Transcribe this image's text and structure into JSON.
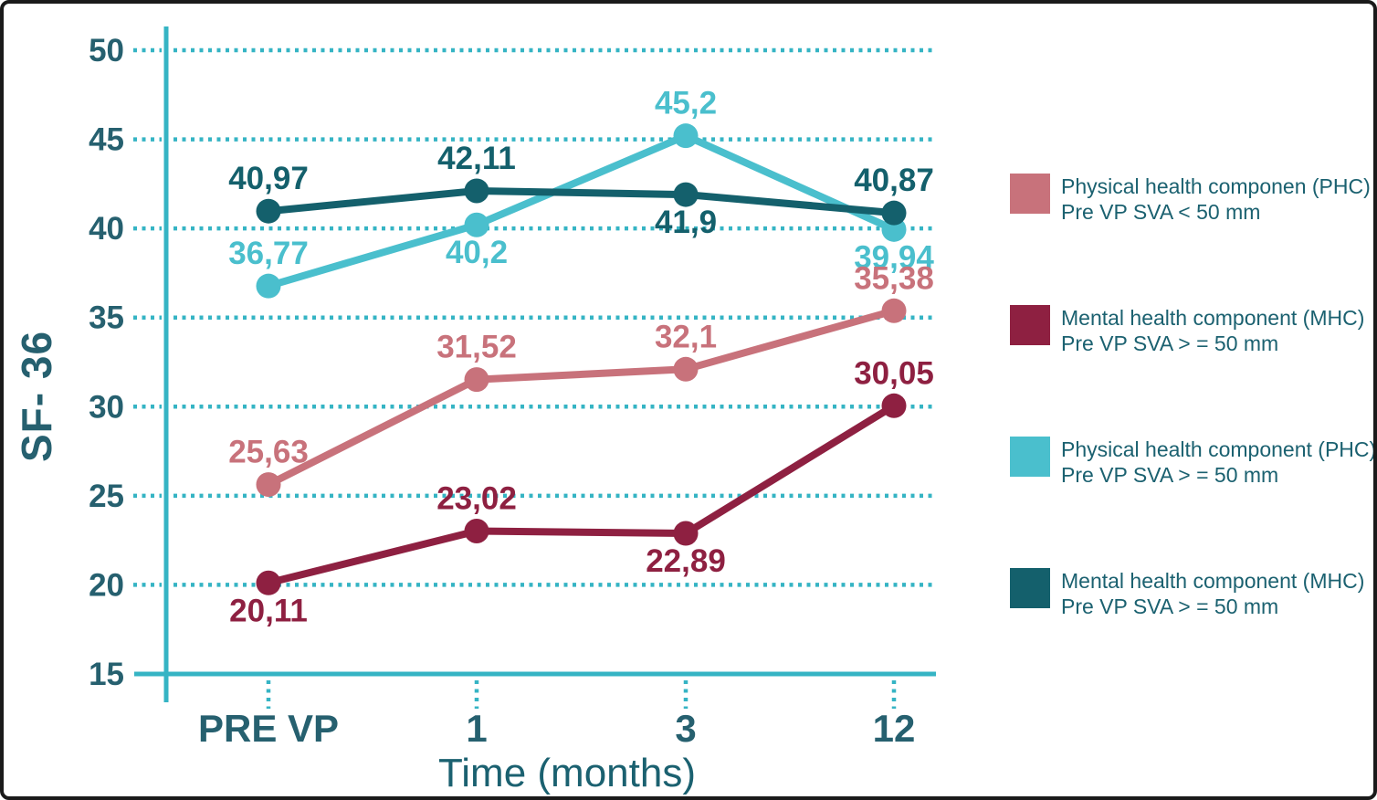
{
  "figure": {
    "y_axis_title": "SF- 36",
    "x_axis_title": "Time (months)"
  },
  "chart_data": {
    "type": "line",
    "title": "",
    "xlabel": "Time (months)",
    "ylabel": "SF- 36",
    "x_categories": [
      "PRE VP",
      "1",
      "3",
      "12"
    ],
    "y_ticks": [
      50,
      45,
      40,
      35,
      30,
      25,
      20,
      15
    ],
    "ylim": [
      15,
      50
    ],
    "grid": "dotted-horizontal",
    "legend_position": "right",
    "axis_color": "#35b4c4",
    "tick_label_color": "#26606f",
    "series": [
      {
        "name": "phc-pre-vp-sva-lt-50",
        "legend_line1": "Physical health componen (PHC)",
        "legend_line2": "Pre VP SVA < 50 mm",
        "color": "#c8727b",
        "values": [
          25.63,
          31.52,
          32.1,
          35.38
        ],
        "point_labels": [
          "25,63",
          "31,52",
          "32,1",
          "35,38"
        ],
        "label_side": [
          "above",
          "above",
          "above",
          "above"
        ]
      },
      {
        "name": "mhc-pre-vp-sva-ge-50-dark-red",
        "legend_line1": "Mental health component (MHC)",
        "legend_line2": "Pre VP SVA > = 50 mm",
        "color": "#8e2041",
        "values": [
          20.11,
          23.02,
          22.89,
          30.05
        ],
        "point_labels": [
          "20,11",
          "23,02",
          "22,89",
          "30,05"
        ],
        "label_side": [
          "below",
          "above",
          "below",
          "above"
        ]
      },
      {
        "name": "phc-pre-vp-sva-ge-50",
        "legend_line1": "Physical health component (PHC)",
        "legend_line2": "Pre VP SVA > = 50 mm",
        "color": "#4abfcd",
        "values": [
          36.77,
          40.2,
          45.2,
          39.94
        ],
        "point_labels": [
          "36,77",
          "40,2",
          "45,2",
          "39,94"
        ],
        "label_side": [
          "above",
          "below",
          "above",
          "below"
        ]
      },
      {
        "name": "mhc-pre-vp-sva-ge-50-teal",
        "legend_line1": "Mental health component (MHC)",
        "legend_line2": "Pre VP SVA > = 50 mm",
        "color": "#14606c",
        "values": [
          40.97,
          42.11,
          41.9,
          40.87
        ],
        "point_labels": [
          "40,97",
          "42,11",
          "41,9",
          "40,87"
        ],
        "label_side": [
          "above",
          "above",
          "below",
          "above"
        ]
      }
    ]
  }
}
